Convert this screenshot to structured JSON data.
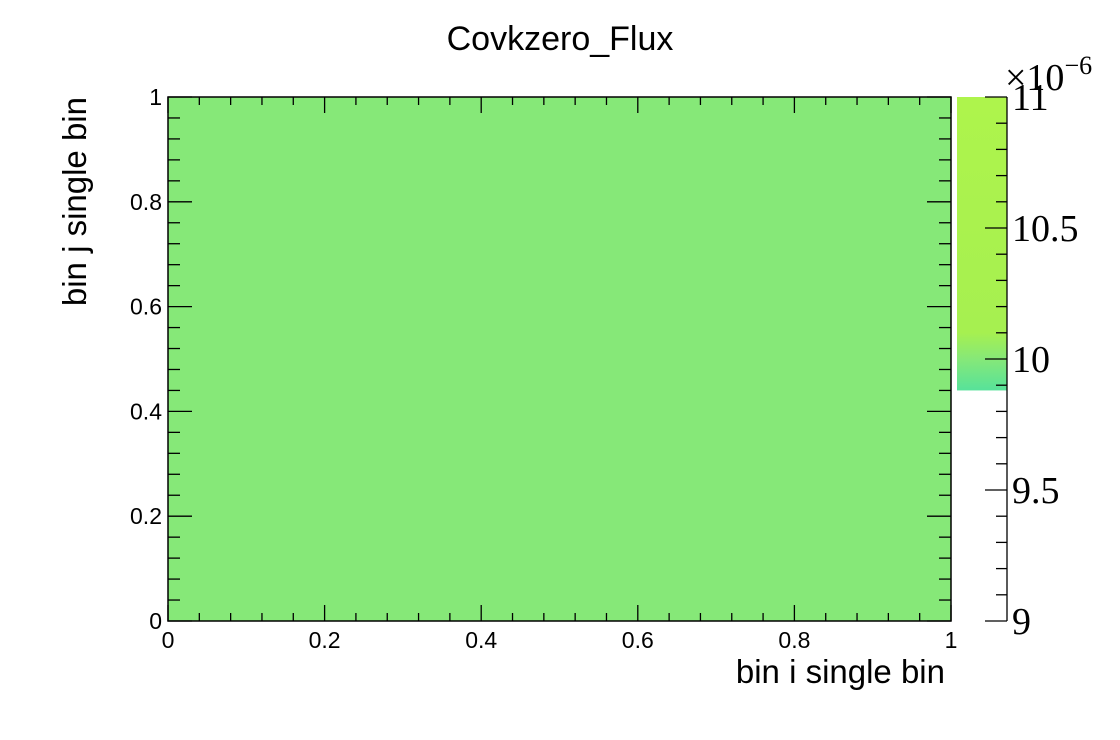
{
  "chart_data": {
    "type": "heatmap",
    "title": "Covkzero_Flux",
    "xlabel": "bin i single bin",
    "ylabel": "bin j single bin",
    "xlim": [
      0,
      1
    ],
    "ylim": [
      0,
      1
    ],
    "x_ticks": [
      "0",
      "0.2",
      "0.4",
      "0.6",
      "0.8",
      "1"
    ],
    "y_ticks": [
      "0",
      "0.2",
      "0.4",
      "0.6",
      "0.8",
      "1"
    ],
    "cells": [
      {
        "x_range": [
          0,
          1
        ],
        "y_range": [
          0,
          1
        ],
        "value": 9.95e-06
      }
    ],
    "cell_color": "#86E878",
    "colorbar": {
      "range": [
        9,
        11
      ],
      "multiplier": "×10",
      "exponent": "−6",
      "ticks": [
        "9",
        "9.5",
        "10",
        "10.5",
        "11"
      ],
      "color_stops": [
        {
          "value": 9.88,
          "color": "#57E29A"
        },
        {
          "value": 10.0,
          "color": "#86E878"
        },
        {
          "value": 10.1,
          "color": "#A6F050"
        },
        {
          "value": 11.0,
          "color": "#AEF44C"
        }
      ],
      "fill_min": 9.88
    }
  }
}
